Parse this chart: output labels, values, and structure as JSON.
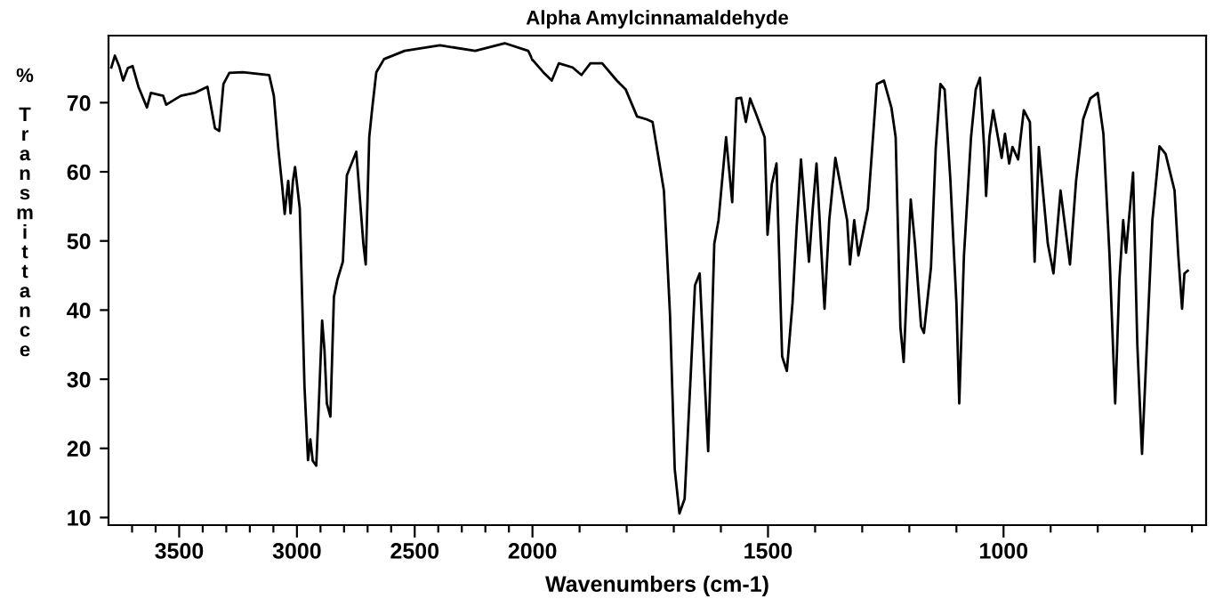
{
  "chart_data": [
    {
      "type": "line",
      "ylabel": "% Transmittance",
      "xlim": [
        3800,
        2000
      ],
      "ylim": [
        8.9,
        79.7
      ],
      "xticks": [
        {
          "value": 3700,
          "label": null
        },
        {
          "value": 3600,
          "label": null
        },
        3500,
        {
          "value": 3400,
          "label": null
        },
        {
          "value": 3300,
          "label": null
        },
        {
          "value": 3200,
          "label": null
        },
        {
          "value": 3100,
          "label": null
        },
        3000,
        {
          "value": 2900,
          "label": null
        },
        {
          "value": 2800,
          "label": null
        },
        {
          "value": 2700,
          "label": null
        },
        {
          "value": 2600,
          "label": null
        },
        2500,
        {
          "value": 2400,
          "label": null
        },
        {
          "value": 2300,
          "label": null
        },
        {
          "value": 2200,
          "label": null
        },
        {
          "value": 2100,
          "label": null
        }
      ],
      "yticks": [
        10,
        20,
        30,
        40,
        50,
        60,
        70
      ],
      "grid": false,
      "legend": false,
      "marker": "none",
      "line_style": "solid",
      "series": [
        {
          "color": "#000000",
          "x": [
            3788,
            3773,
            3755,
            3738,
            3718,
            3698,
            3673,
            3637,
            3620,
            3568,
            3555,
            3493,
            3435,
            3380,
            3348,
            3330,
            3312,
            3287,
            3230,
            3118,
            3098,
            3080,
            3062,
            3052,
            3037,
            3027,
            3017,
            3008,
            2988,
            2978,
            2968,
            2953,
            2943,
            2933,
            2918,
            2908,
            2893,
            2883,
            2873,
            2858,
            2843,
            2828,
            2805,
            2788,
            2768,
            2748,
            2718,
            2708,
            2693,
            2680,
            2663,
            2630,
            2543,
            2393,
            2243,
            2118,
            2018,
            2000
          ],
          "values": [
            75.1,
            76.8,
            75.3,
            73.2,
            75.0,
            75.3,
            72.3,
            69.3,
            71.4,
            71.0,
            69.7,
            71.0,
            71.4,
            72.3,
            66.3,
            65.9,
            72.7,
            74.3,
            74.4,
            74.0,
            71.0,
            63.7,
            57.7,
            53.9,
            58.7,
            54.0,
            58.7,
            60.7,
            54.7,
            41.9,
            29.0,
            18.3,
            21.3,
            18.2,
            17.5,
            25.6,
            38.5,
            34.2,
            26.5,
            24.6,
            41.9,
            44.4,
            47.0,
            59.5,
            61.2,
            62.9,
            49.6,
            46.6,
            65.0,
            69.3,
            74.4,
            76.3,
            77.5,
            78.3,
            77.5,
            78.6,
            77.5,
            76.2
          ]
        }
      ]
    },
    {
      "type": "line",
      "title": "Alpha Amylcinnamaldehyde",
      "xlabel": "Wavenumbers (cm-1)",
      "xlim": [
        2000,
        570
      ],
      "ylim": [
        8.9,
        79.7
      ],
      "tick_labels": "x",
      "xticks": [
        2000,
        {
          "value": 1900,
          "label": null
        },
        {
          "value": 1800,
          "label": null
        },
        {
          "value": 1700,
          "label": null
        },
        {
          "value": 1600,
          "label": null
        },
        1500,
        {
          "value": 1400,
          "label": null
        },
        {
          "value": 1300,
          "label": null
        },
        {
          "value": 1200,
          "label": null
        },
        {
          "value": 1100,
          "label": null
        },
        1000,
        {
          "value": 900,
          "label": null
        },
        {
          "value": 800,
          "label": null
        },
        {
          "value": 700,
          "label": null
        },
        {
          "value": 600,
          "label": null
        }
      ],
      "grid": false,
      "legend": false,
      "marker": "none",
      "line_style": "solid",
      "series": [
        {
          "color": "#000000",
          "x": [
            2000,
            1977,
            1959,
            1944,
            1915,
            1896,
            1877,
            1852,
            1821,
            1802,
            1778,
            1758,
            1745,
            1721,
            1708,
            1698,
            1688,
            1677,
            1664,
            1655,
            1645,
            1635,
            1627,
            1614,
            1605,
            1589,
            1576,
            1567,
            1557,
            1547,
            1538,
            1526,
            1507,
            1501,
            1492,
            1482,
            1470,
            1460,
            1448,
            1439,
            1430,
            1413,
            1405,
            1397,
            1380,
            1370,
            1357,
            1332,
            1326,
            1317,
            1308,
            1288,
            1269,
            1254,
            1238,
            1229,
            1219,
            1212,
            1197,
            1188,
            1175,
            1169,
            1154,
            1144,
            1134,
            1125,
            1113,
            1100,
            1094,
            1084,
            1069,
            1059,
            1050,
            1041,
            1037,
            1030,
            1022,
            1004,
            997,
            988,
            981,
            969,
            957,
            944,
            934,
            925,
            906,
            894,
            879,
            859,
            846,
            831,
            816,
            800,
            788,
            775,
            763,
            754,
            746,
            740,
            725,
            716,
            706,
            696,
            684,
            669,
            656,
            637,
            629,
            621,
            616,
            609
          ],
          "values": [
            76.2,
            74.4,
            73.2,
            75.7,
            75.1,
            74.0,
            75.7,
            75.7,
            73.2,
            71.9,
            68.0,
            67.6,
            67.2,
            57.3,
            39.3,
            17.0,
            10.6,
            12.7,
            30.7,
            43.6,
            45.3,
            30.7,
            19.6,
            49.6,
            53.0,
            65.0,
            55.6,
            70.6,
            70.7,
            67.2,
            70.6,
            68.5,
            65.0,
            50.9,
            58.2,
            61.2,
            33.3,
            31.2,
            41.0,
            52.2,
            61.8,
            47.0,
            54.7,
            61.2,
            40.2,
            53.0,
            62.0,
            53.0,
            46.6,
            53.0,
            47.9,
            54.7,
            72.7,
            73.2,
            69.3,
            65.0,
            37.6,
            32.5,
            56.0,
            49.6,
            37.6,
            36.7,
            46.2,
            63.3,
            72.7,
            71.9,
            59.0,
            41.0,
            26.5,
            47.9,
            65.0,
            71.9,
            73.6,
            63.3,
            56.5,
            65.0,
            68.9,
            62.0,
            65.5,
            61.2,
            63.6,
            61.8,
            68.9,
            67.2,
            47.0,
            63.6,
            49.6,
            45.3,
            57.3,
            46.6,
            58.7,
            67.6,
            70.6,
            71.4,
            65.5,
            47.9,
            26.5,
            44.4,
            53.0,
            48.3,
            59.9,
            35.0,
            19.2,
            34.6,
            53.0,
            63.7,
            62.6,
            57.3,
            47.9,
            40.2,
            45.3,
            45.7
          ]
        }
      ]
    }
  ]
}
